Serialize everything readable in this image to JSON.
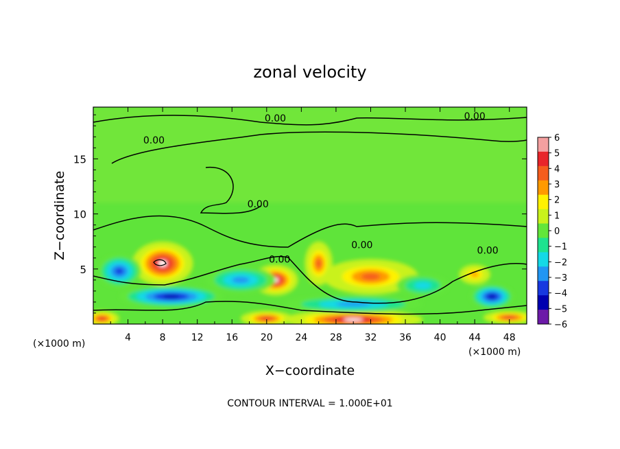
{
  "chart_data": {
    "type": "heatmap",
    "title": "zonal velocity",
    "xlabel": "X−coordinate",
    "ylabel": "Z−coordinate",
    "x_unit_left": "(×1000 m)",
    "x_unit_right": "(×1000 m)",
    "footer": "CONTOUR INTERVAL = 1.000E+01",
    "xlim": [
      0,
      50
    ],
    "ylim": [
      0,
      19.7
    ],
    "x_ticks": [
      "4",
      "8",
      "12",
      "16",
      "20",
      "24",
      "28",
      "32",
      "36",
      "40",
      "44",
      "48"
    ],
    "x_tick_values": [
      4,
      8,
      12,
      16,
      20,
      24,
      28,
      32,
      36,
      40,
      44,
      48
    ],
    "y_ticks": [
      "5",
      "10",
      "15"
    ],
    "y_tick_values": [
      5,
      10,
      15
    ],
    "colorbar": {
      "labels": [
        "6",
        "5",
        "4",
        "3",
        "2",
        "1",
        "0",
        "−1",
        "−2",
        "−3",
        "−4",
        "−5",
        "−6"
      ],
      "values": [
        6,
        5,
        4,
        3,
        2,
        1,
        0,
        -1,
        -2,
        -3,
        -4,
        -5,
        -6
      ],
      "colors": [
        "#f4a0a0",
        "#e8252a",
        "#f55d1d",
        "#ff9a00",
        "#fff200",
        "#c9f21c",
        "#62e63a",
        "#1ee28f",
        "#14d9e6",
        "#2196f3",
        "#1738e0",
        "#0000b0",
        "#6c1aa8"
      ]
    },
    "contour_labels": [
      "0.00",
      "0.00",
      "0.00",
      "0.00",
      "0.00",
      "0.00",
      "0.00"
    ],
    "features": [
      {
        "kind": "positive_max",
        "x": 8,
        "z": 5.5,
        "value": 6,
        "rx": 3.5,
        "rz": 2.0
      },
      {
        "kind": "positive_max",
        "x": 21,
        "z": 4.0,
        "value": 6,
        "rx": 2.6,
        "rz": 1.4
      },
      {
        "kind": "positive_max",
        "x": 32,
        "z": 4.3,
        "value": 4,
        "rx": 5.5,
        "rz": 1.6
      },
      {
        "kind": "positive_max",
        "x": 26,
        "z": 5.5,
        "value": 3.5,
        "rx": 1.6,
        "rz": 2.0
      },
      {
        "kind": "positive_max",
        "x": 44,
        "z": 4.5,
        "value": 2.5,
        "rx": 1.8,
        "rz": 0.9
      },
      {
        "kind": "positive_max",
        "x": 30,
        "z": 0.4,
        "value": 6,
        "rx": 8.0,
        "rz": 0.9
      },
      {
        "kind": "positive_max",
        "x": 20,
        "z": 0.5,
        "value": 5,
        "rx": 3.0,
        "rz": 0.7
      },
      {
        "kind": "positive_max",
        "x": 1,
        "z": 0.5,
        "value": 5,
        "rx": 2.0,
        "rz": 0.7
      },
      {
        "kind": "positive_max",
        "x": 48,
        "z": 0.6,
        "value": 5,
        "rx": 3.0,
        "rz": 0.6
      },
      {
        "kind": "negative_min",
        "x": 9,
        "z": 2.5,
        "value": -5,
        "rx": 6.0,
        "rz": 1.0
      },
      {
        "kind": "negative_min",
        "x": 17,
        "z": 4.0,
        "value": -3,
        "rx": 4.0,
        "rz": 1.2
      },
      {
        "kind": "negative_min",
        "x": 30,
        "z": 1.8,
        "value": -3,
        "rx": 8.0,
        "rz": 0.8
      },
      {
        "kind": "negative_min",
        "x": 3,
        "z": 4.8,
        "value": -3.5,
        "rx": 2.5,
        "rz": 1.5
      },
      {
        "kind": "negative_min",
        "x": 46,
        "z": 2.5,
        "value": -4.5,
        "rx": 2.5,
        "rz": 1.1
      },
      {
        "kind": "negative_min",
        "x": 38,
        "z": 3.5,
        "value": -2,
        "rx": 3.0,
        "rz": 1.0
      }
    ]
  }
}
